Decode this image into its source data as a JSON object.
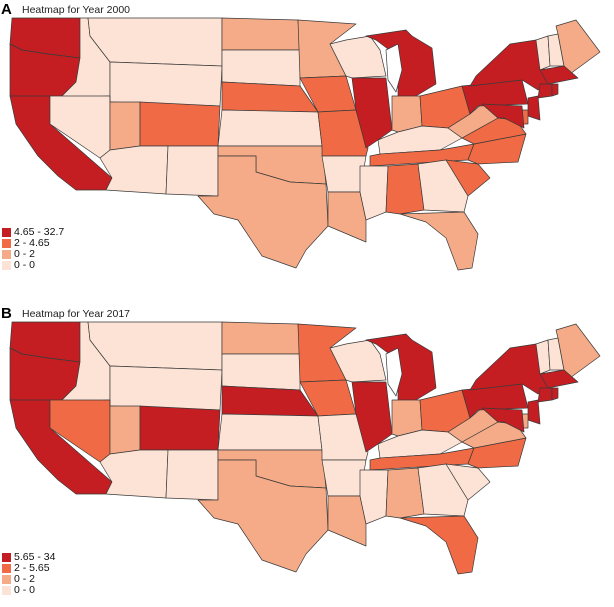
{
  "colors": {
    "c4": "#c41e23",
    "c3": "#ef6a45",
    "c2": "#f5ab87",
    "c1": "#fde3d5",
    "water": "#ffffff"
  },
  "panels": [
    {
      "letter": "A",
      "title": "Heatmap for Year 2000",
      "legend": [
        {
          "label": "4.65 - 32.7",
          "cls": "c4"
        },
        {
          "label": "2 - 4.65",
          "cls": "c3"
        },
        {
          "label": "0 - 2",
          "cls": "c2"
        },
        {
          "label": "0 - 0",
          "cls": "c1"
        }
      ],
      "states": {
        "WA": "c4",
        "OR": "c4",
        "CA": "c4",
        "ID": "c1",
        "NV": "c1",
        "MT": "c1",
        "WY": "c1",
        "UT": "c2",
        "AZ": "c1",
        "CO": "c3",
        "NM": "c1",
        "ND": "c2",
        "SD": "c1",
        "NE": "c3",
        "KS": "c1",
        "OK": "c2",
        "TX": "c2",
        "MN": "c2",
        "IA": "c3",
        "MO": "c3",
        "AR": "c1",
        "LA": "c2",
        "WI": "c1",
        "IL": "c4",
        "MI": "c4",
        "IN": "c2",
        "OH": "c3",
        "KY": "c1",
        "TN": "c3",
        "MS": "c1",
        "AL": "c3",
        "GA": "c1",
        "FL": "c2",
        "SC": "c3",
        "NC": "c3",
        "VA": "c3",
        "WV": "c2",
        "PA": "c4",
        "NY": "c4",
        "VT": "c1",
        "NH": "c1",
        "ME": "c2",
        "MA": "c4",
        "CT": "c4",
        "RI": "c4",
        "NJ": "c4",
        "DE": "c3",
        "MD": "c4"
      }
    },
    {
      "letter": "B",
      "title": "Heatmap for Year 2017",
      "legend": [
        {
          "label": "5.65 - 34",
          "cls": "c4"
        },
        {
          "label": "2 - 5.65",
          "cls": "c3"
        },
        {
          "label": "0 - 2",
          "cls": "c2"
        },
        {
          "label": "0 - 0",
          "cls": "c1"
        }
      ],
      "states": {
        "WA": "c4",
        "OR": "c4",
        "CA": "c4",
        "ID": "c1",
        "NV": "c3",
        "MT": "c1",
        "WY": "c1",
        "UT": "c2",
        "AZ": "c1",
        "CO": "c4",
        "NM": "c1",
        "ND": "c2",
        "SD": "c1",
        "NE": "c4",
        "KS": "c1",
        "OK": "c2",
        "TX": "c2",
        "MN": "c3",
        "IA": "c3",
        "MO": "c1",
        "AR": "c1",
        "LA": "c2",
        "WI": "c1",
        "IL": "c4",
        "MI": "c4",
        "IN": "c2",
        "OH": "c3",
        "KY": "c1",
        "TN": "c3",
        "MS": "c1",
        "AL": "c2",
        "GA": "c1",
        "FL": "c3",
        "SC": "c1",
        "NC": "c3",
        "VA": "c2",
        "WV": "c2",
        "PA": "c4",
        "NY": "c4",
        "VT": "c1",
        "NH": "c1",
        "ME": "c2",
        "MA": "c4",
        "CT": "c4",
        "RI": "c4",
        "NJ": "c4",
        "DE": "c2",
        "MD": "c4"
      }
    }
  ]
}
